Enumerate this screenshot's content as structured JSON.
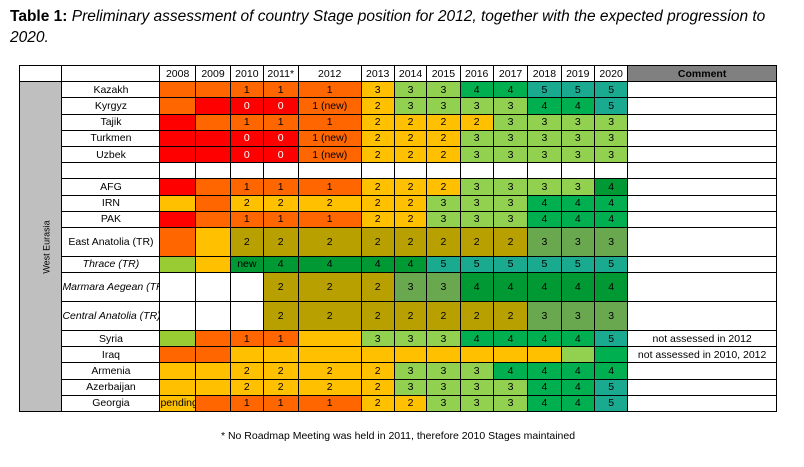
{
  "caption": {
    "label": "Table 1:",
    "text": "Preliminary assessment of country Stage position for 2012, together with the expected progression to 2020."
  },
  "columns": [
    "2008",
    "2009",
    "2010",
    "2011*",
    "2012",
    "2013",
    "2014",
    "2015",
    "2016",
    "2017",
    "2018",
    "2019",
    "2020"
  ],
  "comment_header": "Comment",
  "region_label": "West Eurasia",
  "colors": {
    "red": "#ff0000",
    "orange": "#ff6600",
    "yellow": "#ffc000",
    "lime": "#99cc33",
    "light_green": "#92d050",
    "green": "#00b050",
    "dark_green": "#009933",
    "teal": "#1aaa8f",
    "olive": "#b8a000",
    "gray_green": "#6aa84f"
  },
  "rows": [
    {
      "country": "Kazakh",
      "italic": false,
      "tall": false,
      "cells": [
        {
          "v": "",
          "c": "#ff6600"
        },
        {
          "v": "",
          "c": "#ff6600"
        },
        {
          "v": "1",
          "c": "#ff6600"
        },
        {
          "v": "1",
          "c": "#ff6600"
        },
        {
          "v": "1",
          "c": "#ff6600"
        },
        {
          "v": "3",
          "c": "#ffc000"
        },
        {
          "v": "3",
          "c": "#92d050"
        },
        {
          "v": "3",
          "c": "#92d050"
        },
        {
          "v": "4",
          "c": "#00b050"
        },
        {
          "v": "4",
          "c": "#00b050"
        },
        {
          "v": "5",
          "c": "#1aaa8f"
        },
        {
          "v": "5",
          "c": "#1aaa8f"
        },
        {
          "v": "5",
          "c": "#1aaa8f"
        }
      ],
      "comment": ""
    },
    {
      "country": "Kyrgyz",
      "italic": false,
      "tall": false,
      "cells": [
        {
          "v": "",
          "c": "#ff6600"
        },
        {
          "v": "",
          "c": "#ff0000"
        },
        {
          "v": "0",
          "c": "#ff0000",
          "w": true
        },
        {
          "v": "0",
          "c": "#ff0000",
          "w": true
        },
        {
          "v": "1 (new)",
          "c": "#ff6600"
        },
        {
          "v": "2",
          "c": "#ffc000"
        },
        {
          "v": "3",
          "c": "#92d050"
        },
        {
          "v": "3",
          "c": "#92d050"
        },
        {
          "v": "3",
          "c": "#92d050"
        },
        {
          "v": "3",
          "c": "#92d050"
        },
        {
          "v": "4",
          "c": "#00b050"
        },
        {
          "v": "4",
          "c": "#00b050"
        },
        {
          "v": "5",
          "c": "#1aaa8f"
        }
      ],
      "comment": ""
    },
    {
      "country": "Tajik",
      "italic": false,
      "tall": false,
      "cells": [
        {
          "v": "",
          "c": "#ff0000"
        },
        {
          "v": "",
          "c": "#ff6600"
        },
        {
          "v": "1",
          "c": "#ff6600"
        },
        {
          "v": "1",
          "c": "#ff6600"
        },
        {
          "v": "1",
          "c": "#ff6600"
        },
        {
          "v": "2",
          "c": "#ffc000"
        },
        {
          "v": "2",
          "c": "#ffc000"
        },
        {
          "v": "2",
          "c": "#ffc000"
        },
        {
          "v": "2",
          "c": "#ffc000"
        },
        {
          "v": "3",
          "c": "#92d050"
        },
        {
          "v": "3",
          "c": "#92d050"
        },
        {
          "v": "3",
          "c": "#92d050"
        },
        {
          "v": "3",
          "c": "#92d050"
        }
      ],
      "comment": ""
    },
    {
      "country": "Turkmen",
      "italic": false,
      "tall": false,
      "cells": [
        {
          "v": "",
          "c": "#ff0000"
        },
        {
          "v": "",
          "c": "#ff0000"
        },
        {
          "v": "0",
          "c": "#ff0000",
          "w": true
        },
        {
          "v": "0",
          "c": "#ff0000",
          "w": true
        },
        {
          "v": "1 (new)",
          "c": "#ff6600"
        },
        {
          "v": "2",
          "c": "#ffc000"
        },
        {
          "v": "2",
          "c": "#ffc000"
        },
        {
          "v": "2",
          "c": "#ffc000"
        },
        {
          "v": "3",
          "c": "#92d050"
        },
        {
          "v": "3",
          "c": "#92d050"
        },
        {
          "v": "3",
          "c": "#92d050"
        },
        {
          "v": "3",
          "c": "#92d050"
        },
        {
          "v": "3",
          "c": "#92d050"
        }
      ],
      "comment": ""
    },
    {
      "country": "Uzbek",
      "italic": false,
      "tall": false,
      "cells": [
        {
          "v": "",
          "c": "#ff0000"
        },
        {
          "v": "",
          "c": "#ff0000"
        },
        {
          "v": "0",
          "c": "#ff0000",
          "w": true
        },
        {
          "v": "0",
          "c": "#ff0000",
          "w": true
        },
        {
          "v": "1 (new)",
          "c": "#ff6600"
        },
        {
          "v": "2",
          "c": "#ffc000"
        },
        {
          "v": "2",
          "c": "#ffc000"
        },
        {
          "v": "2",
          "c": "#ffc000"
        },
        {
          "v": "3",
          "c": "#92d050"
        },
        {
          "v": "3",
          "c": "#92d050"
        },
        {
          "v": "3",
          "c": "#92d050"
        },
        {
          "v": "3",
          "c": "#92d050"
        },
        {
          "v": "3",
          "c": "#92d050"
        }
      ],
      "comment": ""
    },
    {
      "country": "",
      "blank": true,
      "italic": false,
      "tall": false,
      "cells": [
        {
          "v": "",
          "c": "#ffffff"
        },
        {
          "v": "",
          "c": "#ffffff"
        },
        {
          "v": "",
          "c": "#ffffff"
        },
        {
          "v": "",
          "c": "#ffffff"
        },
        {
          "v": "",
          "c": "#ffffff"
        },
        {
          "v": "",
          "c": "#ffffff"
        },
        {
          "v": "",
          "c": "#ffffff"
        },
        {
          "v": "",
          "c": "#ffffff"
        },
        {
          "v": "",
          "c": "#ffffff"
        },
        {
          "v": "",
          "c": "#ffffff"
        },
        {
          "v": "",
          "c": "#ffffff"
        },
        {
          "v": "",
          "c": "#ffffff"
        },
        {
          "v": "",
          "c": "#ffffff"
        }
      ],
      "comment": ""
    },
    {
      "country": "AFG",
      "italic": false,
      "tall": false,
      "cells": [
        {
          "v": "",
          "c": "#ff0000"
        },
        {
          "v": "",
          "c": "#ff6600"
        },
        {
          "v": "1",
          "c": "#ff6600"
        },
        {
          "v": "1",
          "c": "#ff6600"
        },
        {
          "v": "1",
          "c": "#ff6600"
        },
        {
          "v": "2",
          "c": "#ffc000"
        },
        {
          "v": "2",
          "c": "#ffc000"
        },
        {
          "v": "2",
          "c": "#ffc000"
        },
        {
          "v": "3",
          "c": "#92d050"
        },
        {
          "v": "3",
          "c": "#92d050"
        },
        {
          "v": "3",
          "c": "#92d050"
        },
        {
          "v": "3",
          "c": "#92d050"
        },
        {
          "v": "4",
          "c": "#009933"
        }
      ],
      "comment": ""
    },
    {
      "country": "IRN",
      "italic": false,
      "tall": false,
      "cells": [
        {
          "v": "",
          "c": "#ffc000"
        },
        {
          "v": "",
          "c": "#ff6600"
        },
        {
          "v": "2",
          "c": "#ffc000"
        },
        {
          "v": "2",
          "c": "#ffc000"
        },
        {
          "v": "2",
          "c": "#ffc000"
        },
        {
          "v": "2",
          "c": "#ffc000"
        },
        {
          "v": "2",
          "c": "#ffc000"
        },
        {
          "v": "3",
          "c": "#92d050"
        },
        {
          "v": "3",
          "c": "#92d050"
        },
        {
          "v": "3",
          "c": "#92d050"
        },
        {
          "v": "4",
          "c": "#00b050"
        },
        {
          "v": "4",
          "c": "#00b050"
        },
        {
          "v": "4",
          "c": "#00b050"
        }
      ],
      "comment": ""
    },
    {
      "country": "PAK",
      "italic": false,
      "tall": false,
      "cells": [
        {
          "v": "",
          "c": "#ff0000"
        },
        {
          "v": "",
          "c": "#ff6600"
        },
        {
          "v": "1",
          "c": "#ff6600"
        },
        {
          "v": "1",
          "c": "#ff6600"
        },
        {
          "v": "1",
          "c": "#ff6600"
        },
        {
          "v": "2",
          "c": "#ffc000"
        },
        {
          "v": "2",
          "c": "#ffc000"
        },
        {
          "v": "3",
          "c": "#92d050"
        },
        {
          "v": "3",
          "c": "#92d050"
        },
        {
          "v": "3",
          "c": "#92d050"
        },
        {
          "v": "4",
          "c": "#00b050"
        },
        {
          "v": "4",
          "c": "#00b050"
        },
        {
          "v": "4",
          "c": "#00b050"
        }
      ],
      "comment": ""
    },
    {
      "country": "East Anatolia (TR)",
      "italic": false,
      "tall": true,
      "cells": [
        {
          "v": "",
          "c": "#ff6600"
        },
        {
          "v": "",
          "c": "#ffc000"
        },
        {
          "v": "2",
          "c": "#b8a000"
        },
        {
          "v": "2",
          "c": "#b8a000"
        },
        {
          "v": "2",
          "c": "#b8a000"
        },
        {
          "v": "2",
          "c": "#b8a000"
        },
        {
          "v": "2",
          "c": "#b8a000"
        },
        {
          "v": "2",
          "c": "#b8a000"
        },
        {
          "v": "2",
          "c": "#b8a000"
        },
        {
          "v": "2",
          "c": "#b8a000"
        },
        {
          "v": "3",
          "c": "#6aa84f"
        },
        {
          "v": "3",
          "c": "#6aa84f"
        },
        {
          "v": "3",
          "c": "#6aa84f"
        }
      ],
      "comment": ""
    },
    {
      "country": "Thrace (TR)",
      "italic": true,
      "tall": false,
      "cells": [
        {
          "v": "",
          "c": "#99cc33"
        },
        {
          "v": "",
          "c": "#ffc000"
        },
        {
          "v": "new",
          "c": "#009933"
        },
        {
          "v": "4",
          "c": "#009933"
        },
        {
          "v": "4",
          "c": "#009933"
        },
        {
          "v": "4",
          "c": "#009933"
        },
        {
          "v": "4",
          "c": "#009933"
        },
        {
          "v": "5",
          "c": "#1aaa8f"
        },
        {
          "v": "5",
          "c": "#1aaa8f"
        },
        {
          "v": "5",
          "c": "#1aaa8f"
        },
        {
          "v": "5",
          "c": "#1aaa8f"
        },
        {
          "v": "5",
          "c": "#1aaa8f"
        },
        {
          "v": "5",
          "c": "#1aaa8f"
        }
      ],
      "comment": ""
    },
    {
      "country": "Marmara Aegean (TR)",
      "italic": true,
      "tall": true,
      "cells": [
        {
          "v": "",
          "c": "#ffffff"
        },
        {
          "v": "",
          "c": "#ffffff"
        },
        {
          "v": "",
          "c": "#ffffff"
        },
        {
          "v": "2",
          "c": "#b8a000"
        },
        {
          "v": "2",
          "c": "#b8a000"
        },
        {
          "v": "2",
          "c": "#b8a000"
        },
        {
          "v": "3",
          "c": "#6aa84f"
        },
        {
          "v": "3",
          "c": "#6aa84f"
        },
        {
          "v": "4",
          "c": "#009933"
        },
        {
          "v": "4",
          "c": "#009933"
        },
        {
          "v": "4",
          "c": "#009933"
        },
        {
          "v": "4",
          "c": "#009933"
        },
        {
          "v": "4",
          "c": "#009933"
        }
      ],
      "comment": ""
    },
    {
      "country": "Central Anatolia (TR)",
      "italic": true,
      "tall": true,
      "cells": [
        {
          "v": "",
          "c": "#ffffff"
        },
        {
          "v": "",
          "c": "#ffffff"
        },
        {
          "v": "",
          "c": "#ffffff"
        },
        {
          "v": "2",
          "c": "#b8a000"
        },
        {
          "v": "2",
          "c": "#b8a000"
        },
        {
          "v": "2",
          "c": "#b8a000"
        },
        {
          "v": "2",
          "c": "#b8a000"
        },
        {
          "v": "2",
          "c": "#b8a000"
        },
        {
          "v": "2",
          "c": "#b8a000"
        },
        {
          "v": "2",
          "c": "#b8a000"
        },
        {
          "v": "3",
          "c": "#6aa84f"
        },
        {
          "v": "3",
          "c": "#6aa84f"
        },
        {
          "v": "3",
          "c": "#6aa84f"
        }
      ],
      "comment": ""
    },
    {
      "country": "Syria",
      "italic": false,
      "tall": false,
      "cells": [
        {
          "v": "",
          "c": "#99cc33"
        },
        {
          "v": "",
          "c": "#ff6600"
        },
        {
          "v": "1",
          "c": "#ff6600"
        },
        {
          "v": "1",
          "c": "#ff6600"
        },
        {
          "v": "",
          "c": "#ffc000"
        },
        {
          "v": "3",
          "c": "#92d050"
        },
        {
          "v": "3",
          "c": "#92d050"
        },
        {
          "v": "3",
          "c": "#92d050"
        },
        {
          "v": "4",
          "c": "#00b050"
        },
        {
          "v": "4",
          "c": "#00b050"
        },
        {
          "v": "4",
          "c": "#00b050"
        },
        {
          "v": "4",
          "c": "#00b050"
        },
        {
          "v": "5",
          "c": "#1aaa8f"
        }
      ],
      "comment": "not assessed in 2012"
    },
    {
      "country": "Iraq",
      "italic": false,
      "tall": false,
      "cells": [
        {
          "v": "",
          "c": "#ff6600"
        },
        {
          "v": "",
          "c": "#ff6600"
        },
        {
          "v": "",
          "c": "#ffc000"
        },
        {
          "v": "",
          "c": "#ffc000"
        },
        {
          "v": "",
          "c": "#ffc000"
        },
        {
          "v": "",
          "c": "#ffc000"
        },
        {
          "v": "",
          "c": "#ffc000"
        },
        {
          "v": "",
          "c": "#ffc000"
        },
        {
          "v": "",
          "c": "#ffc000"
        },
        {
          "v": "",
          "c": "#ffc000"
        },
        {
          "v": "",
          "c": "#ffc000"
        },
        {
          "v": "",
          "c": "#92d050"
        },
        {
          "v": "",
          "c": "#00b050"
        }
      ],
      "comment": "not assessed in 2010, 2012"
    },
    {
      "country": "Armenia",
      "italic": false,
      "tall": false,
      "cells": [
        {
          "v": "",
          "c": "#ffc000"
        },
        {
          "v": "",
          "c": "#ffc000"
        },
        {
          "v": "2",
          "c": "#ffc000"
        },
        {
          "v": "2",
          "c": "#ffc000"
        },
        {
          "v": "2",
          "c": "#ffc000"
        },
        {
          "v": "2",
          "c": "#ffc000"
        },
        {
          "v": "3",
          "c": "#92d050"
        },
        {
          "v": "3",
          "c": "#92d050"
        },
        {
          "v": "3",
          "c": "#92d050"
        },
        {
          "v": "4",
          "c": "#00b050"
        },
        {
          "v": "4",
          "c": "#00b050"
        },
        {
          "v": "4",
          "c": "#00b050"
        },
        {
          "v": "4",
          "c": "#00b050"
        }
      ],
      "comment": ""
    },
    {
      "country": "Azerbaijan",
      "italic": false,
      "tall": false,
      "cells": [
        {
          "v": "",
          "c": "#ffc000"
        },
        {
          "v": "",
          "c": "#ffc000"
        },
        {
          "v": "2",
          "c": "#ffc000"
        },
        {
          "v": "2",
          "c": "#ffc000"
        },
        {
          "v": "2",
          "c": "#ffc000"
        },
        {
          "v": "2",
          "c": "#ffc000"
        },
        {
          "v": "3",
          "c": "#92d050"
        },
        {
          "v": "3",
          "c": "#92d050"
        },
        {
          "v": "3",
          "c": "#92d050"
        },
        {
          "v": "3",
          "c": "#92d050"
        },
        {
          "v": "4",
          "c": "#00b050"
        },
        {
          "v": "4",
          "c": "#00b050"
        },
        {
          "v": "5",
          "c": "#1aaa8f"
        }
      ],
      "comment": ""
    },
    {
      "country": "Georgia",
      "italic": false,
      "tall": false,
      "cells": [
        {
          "v": "pending",
          "c": "#ffc000",
          "small": true
        },
        {
          "v": "",
          "c": "#ff6600"
        },
        {
          "v": "1",
          "c": "#ff6600"
        },
        {
          "v": "1",
          "c": "#ff6600"
        },
        {
          "v": "1",
          "c": "#ff6600"
        },
        {
          "v": "2",
          "c": "#ffc000"
        },
        {
          "v": "2",
          "c": "#ffc000"
        },
        {
          "v": "3",
          "c": "#92d050"
        },
        {
          "v": "3",
          "c": "#92d050"
        },
        {
          "v": "3",
          "c": "#92d050"
        },
        {
          "v": "4",
          "c": "#00b050"
        },
        {
          "v": "4",
          "c": "#00b050"
        },
        {
          "v": "5",
          "c": "#1aaa8f"
        }
      ],
      "comment": ""
    }
  ],
  "footnote": "* No Roadmap Meeting was held in 2011, therefore 2010 Stages maintained"
}
